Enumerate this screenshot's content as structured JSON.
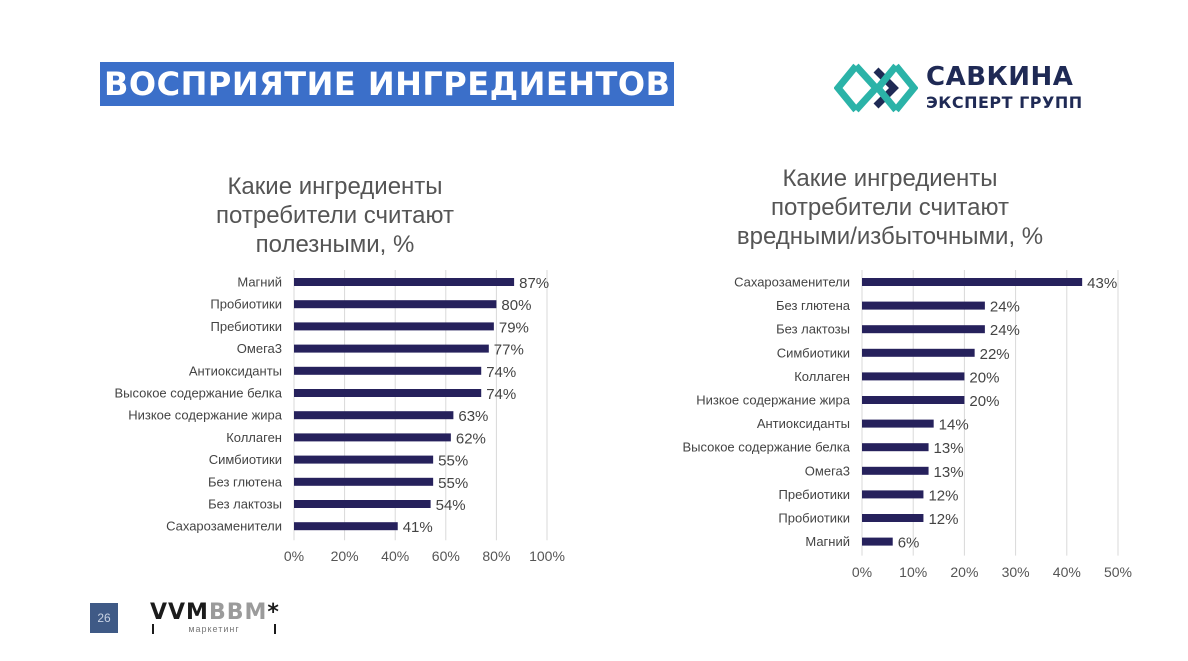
{
  "slide": {
    "title": "ВОСПРИЯТИЕ ИНГРЕДИЕНТОВ",
    "page_number": "26"
  },
  "logo": {
    "line1": "САВКИНА",
    "line2": "ЭКСПЕРТ ГРУПП",
    "colors": [
      "#2bb3a8",
      "#1f2a55"
    ]
  },
  "brand": {
    "name_dark": "VVM",
    "name_light": "BBM",
    "star": "*",
    "subtitle": "маркетинг"
  },
  "chart_data": [
    {
      "type": "bar",
      "orientation": "horizontal",
      "title": "Какие ингредиенты потребители считают полезными, %",
      "title_lines": [
        "Какие ингредиенты",
        "потребители считают",
        "полезными, %"
      ],
      "categories": [
        "Магний",
        "Пробиотики",
        "Пребиотики",
        "Омега3",
        "Антиоксиданты",
        "Высокое содержание белка",
        "Низкое содержание жира",
        "Коллаген",
        "Симбиотики",
        "Без глютена",
        "Без лактозы",
        "Сахарозаменители"
      ],
      "values": [
        87,
        80,
        79,
        77,
        74,
        74,
        63,
        62,
        55,
        55,
        54,
        41
      ],
      "value_suffix": "%",
      "xlim": [
        0,
        100
      ],
      "xticks": [
        0,
        20,
        40,
        60,
        80,
        100
      ],
      "grid": true,
      "bar_color": "#26215c"
    },
    {
      "type": "bar",
      "orientation": "horizontal",
      "title": "Какие ингредиенты потребители считают вредными/избыточными, %",
      "title_lines": [
        "Какие ингредиенты",
        "потребители считают",
        "вредными/избыточными, %"
      ],
      "categories": [
        "Сахарозаменители",
        "Без глютена",
        "Без лактозы",
        "Симбиотики",
        "Коллаген",
        "Низкое содержание жира",
        "Антиоксиданты",
        "Высокое содержание белка",
        "Омега3",
        "Пребиотики",
        "Пробиотики",
        "Магний"
      ],
      "values": [
        43,
        24,
        24,
        22,
        20,
        20,
        14,
        13,
        13,
        12,
        12,
        6
      ],
      "value_suffix": "%",
      "xlim": [
        0,
        50
      ],
      "xticks": [
        0,
        10,
        20,
        30,
        40,
        50
      ],
      "grid": true,
      "bar_color": "#26215c"
    }
  ]
}
